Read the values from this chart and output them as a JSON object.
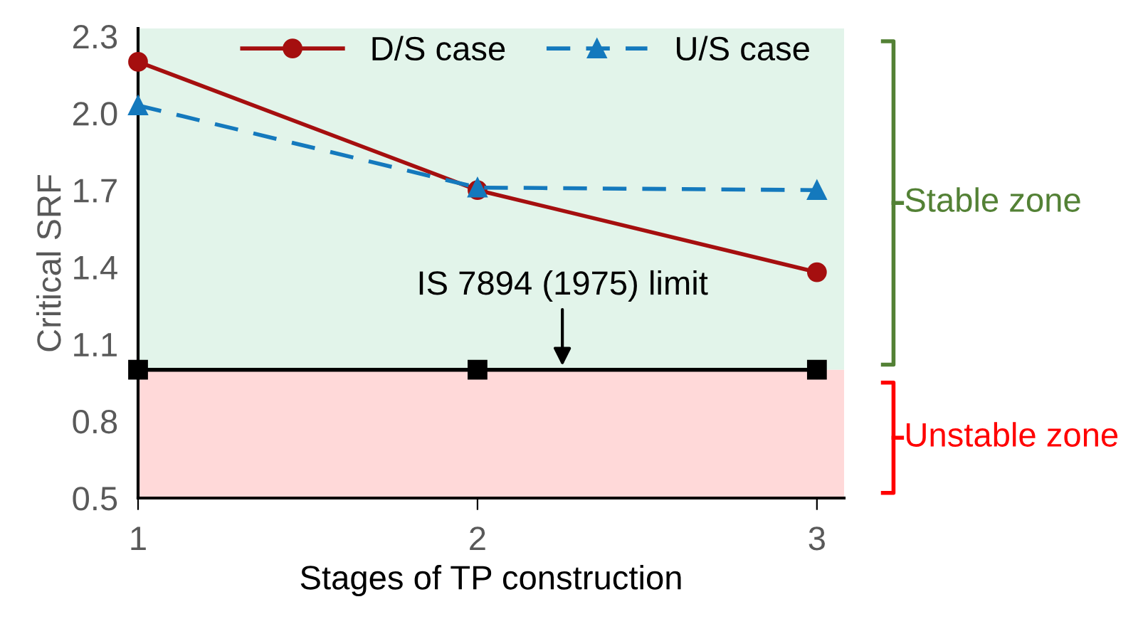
{
  "chart_data": {
    "type": "line",
    "xlabel": "Stages of TP construction",
    "ylabel": "Critical SRF",
    "x": [
      1,
      2,
      3
    ],
    "series": [
      {
        "name": "D/S case",
        "color": "#a50f0f",
        "values": [
          2.2,
          1.7,
          1.38
        ],
        "marker": "circle",
        "line_style": "solid"
      },
      {
        "name": "U/S case",
        "color": "#1479bd",
        "values": [
          2.03,
          1.71,
          1.7
        ],
        "marker": "triangle",
        "line_style": "dashed"
      },
      {
        "color": "#000000",
        "values": [
          1.0,
          1.0,
          1.0
        ],
        "marker": "square",
        "line_style": "solid"
      }
    ],
    "xlim": [
      1,
      3.08
    ],
    "xticks": [
      1,
      2,
      3
    ],
    "ylim": [
      0.5,
      2.33
    ],
    "yticks": [
      0.5,
      0.8,
      1.1,
      1.4,
      1.7,
      {
        "value": 2.0,
        "label": "2.0"
      },
      2.3
    ],
    "bands": [
      {
        "axis": "y",
        "from": 1.0,
        "to": 2.33,
        "label": "Stable zone",
        "color": "#e2f4ea"
      },
      {
        "axis": "y",
        "from": 0.5,
        "to": 1.0,
        "label": "Unstable zone",
        "color": "#ffd9d9"
      }
    ],
    "annotations": [
      {
        "text": "IS 7894 (1975) limit",
        "x": 2.25,
        "y": 1.0
      }
    ],
    "grid": false,
    "legend": "top"
  }
}
